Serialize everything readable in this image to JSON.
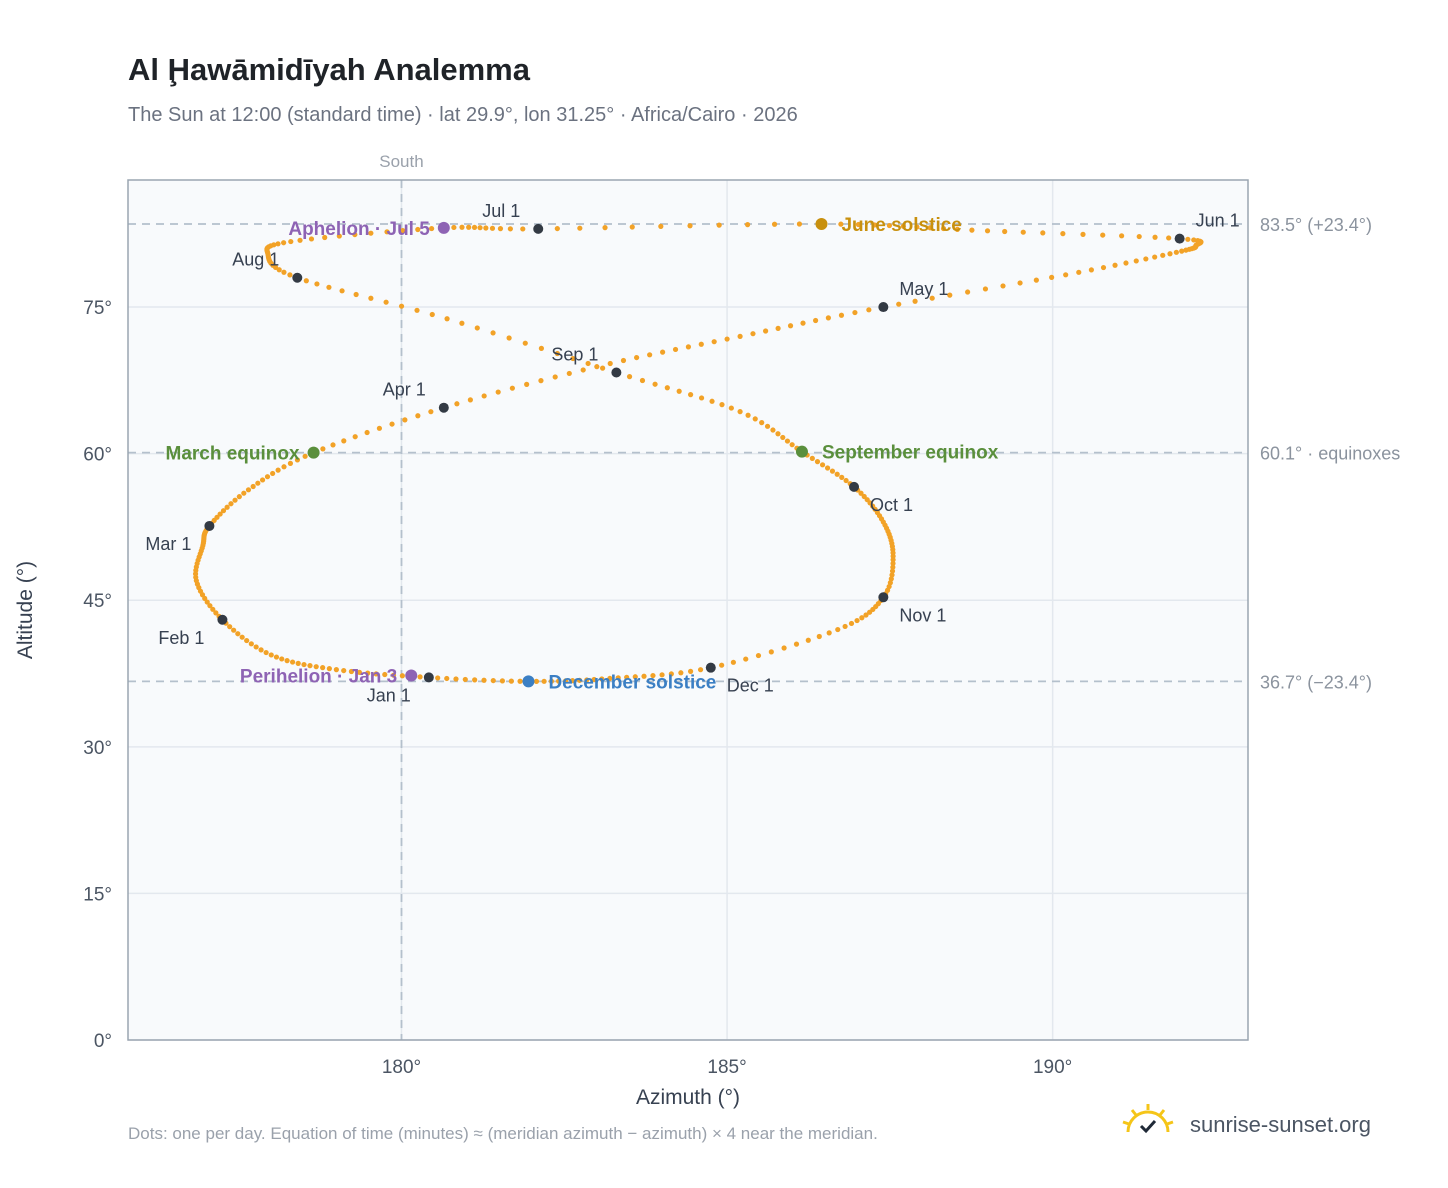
{
  "header": {
    "title": "Al Ḩawāmidīyah Analemma",
    "subtitle": "The Sun at 12:00 (standard time) · lat 29.9°, lon 31.25° · Africa/Cairo · 2026"
  },
  "footer": {
    "note": "Dots: one per day. Equation of time (minutes) ≈ (meridian azimuth − azimuth) × 4 near the meridian.",
    "brand": "sunrise-sunset.org"
  },
  "colors": {
    "curve": "#f2a227",
    "month_dot": "#333a44",
    "equinox": "#5a8f3c",
    "june_solstice": "#c8900e",
    "december_solstice": "#3b7fc4",
    "apsis": "#8e63b4",
    "plot_bg": "#f8fafc",
    "grid": "#e3e8ee",
    "ref_line": "#b4c0cc",
    "axis": "#9aa5b1"
  },
  "chart_data": {
    "type": "scatter",
    "xlabel": "Azimuth (°)",
    "ylabel": "Altitude (°)",
    "xlim": [
      175.8,
      193.0
    ],
    "ylim": [
      0,
      88
    ],
    "x_ticks": [
      {
        "v": 180,
        "label": "180°"
      },
      {
        "v": 185,
        "label": "185°"
      },
      {
        "v": 190,
        "label": "190°"
      }
    ],
    "y_ticks": [
      {
        "v": 0,
        "label": "0°"
      },
      {
        "v": 15,
        "label": "15°"
      },
      {
        "v": 30,
        "label": "30°"
      },
      {
        "v": 45,
        "label": "45°"
      },
      {
        "v": 60,
        "label": "60°"
      },
      {
        "v": 75,
        "label": "75°"
      }
    ],
    "grid": true,
    "meridian": {
      "x": 180,
      "label": "South"
    },
    "reference_lines": [
      {
        "y": 83.5,
        "label": "83.5° (+23.4°)"
      },
      {
        "y": 60.1,
        "label": "60.1° · equinoxes"
      },
      {
        "y": 36.7,
        "label": "36.7° (−23.4°)"
      }
    ],
    "month_markers": [
      {
        "label": "Jan 1",
        "x": 180.42,
        "y": 37.1,
        "anchor": "below-left"
      },
      {
        "label": "Feb 1",
        "x": 177.25,
        "y": 43.0,
        "anchor": "below-left"
      },
      {
        "label": "Mar 1",
        "x": 177.05,
        "y": 52.6,
        "anchor": "below-left"
      },
      {
        "label": "Apr 1",
        "x": 180.65,
        "y": 64.7,
        "anchor": "above-left"
      },
      {
        "label": "May 1",
        "x": 187.4,
        "y": 75.0,
        "anchor": "above-right"
      },
      {
        "label": "Jun 1",
        "x": 191.95,
        "y": 82.0,
        "anchor": "above-right"
      },
      {
        "label": "Jul 1",
        "x": 182.1,
        "y": 83.0,
        "anchor": "above-left"
      },
      {
        "label": "Aug 1",
        "x": 178.4,
        "y": 78.0,
        "anchor": "above-left"
      },
      {
        "label": "Sep 1",
        "x": 183.3,
        "y": 68.3,
        "anchor": "above-left"
      },
      {
        "label": "Oct 1",
        "x": 186.95,
        "y": 56.6,
        "anchor": "below-right"
      },
      {
        "label": "Nov 1",
        "x": 187.4,
        "y": 45.3,
        "anchor": "below-right"
      },
      {
        "label": "Dec 1",
        "x": 184.75,
        "y": 38.1,
        "anchor": "below-right"
      }
    ],
    "events": [
      {
        "label": "March equinox",
        "x": 178.65,
        "y": 60.1,
        "color": "#5a8f3c",
        "side": "left"
      },
      {
        "label": "September equinox",
        "x": 186.15,
        "y": 60.2,
        "color": "#5a8f3c",
        "side": "right"
      },
      {
        "label": "June solstice",
        "x": 186.45,
        "y": 83.5,
        "color": "#c8900e",
        "side": "right"
      },
      {
        "label": "December solstice",
        "x": 181.95,
        "y": 36.7,
        "color": "#3b7fc4",
        "side": "right"
      },
      {
        "label": "Perihelion · Jan 3",
        "x": 180.15,
        "y": 37.3,
        "color": "#8e63b4",
        "side": "left"
      },
      {
        "label": "Aphelion · Jul 5",
        "x": 180.65,
        "y": 83.1,
        "color": "#8e63b4",
        "side": "left"
      }
    ],
    "daily_path": [
      [
        180.42,
        37.1
      ],
      [
        179.0,
        37.9
      ],
      [
        178.0,
        39.4
      ],
      [
        177.25,
        43.0
      ],
      [
        176.85,
        47.0
      ],
      [
        176.95,
        50.6
      ],
      [
        177.05,
        52.6
      ],
      [
        177.65,
        56.3
      ],
      [
        178.65,
        60.1
      ],
      [
        180.65,
        64.7
      ],
      [
        183.0,
        68.9
      ],
      [
        185.2,
        72.0
      ],
      [
        187.4,
        75.0
      ],
      [
        190.2,
        78.3
      ],
      [
        191.9,
        80.6
      ],
      [
        192.2,
        81.3
      ],
      [
        191.95,
        82.0
      ],
      [
        189.0,
        82.8
      ],
      [
        186.45,
        83.5
      ],
      [
        182.1,
        83.0
      ],
      [
        180.65,
        83.1
      ],
      [
        178.3,
        81.7
      ],
      [
        177.95,
        80.4
      ],
      [
        178.4,
        78.0
      ],
      [
        180.7,
        73.8
      ],
      [
        183.3,
        68.3
      ],
      [
        185.2,
        64.3
      ],
      [
        186.15,
        60.2
      ],
      [
        186.95,
        56.6
      ],
      [
        187.4,
        53.0
      ],
      [
        187.55,
        49.5
      ],
      [
        187.4,
        45.3
      ],
      [
        186.7,
        42.0
      ],
      [
        184.75,
        38.1
      ],
      [
        183.2,
        37.0
      ],
      [
        181.95,
        36.7
      ],
      [
        180.42,
        37.1
      ]
    ]
  }
}
